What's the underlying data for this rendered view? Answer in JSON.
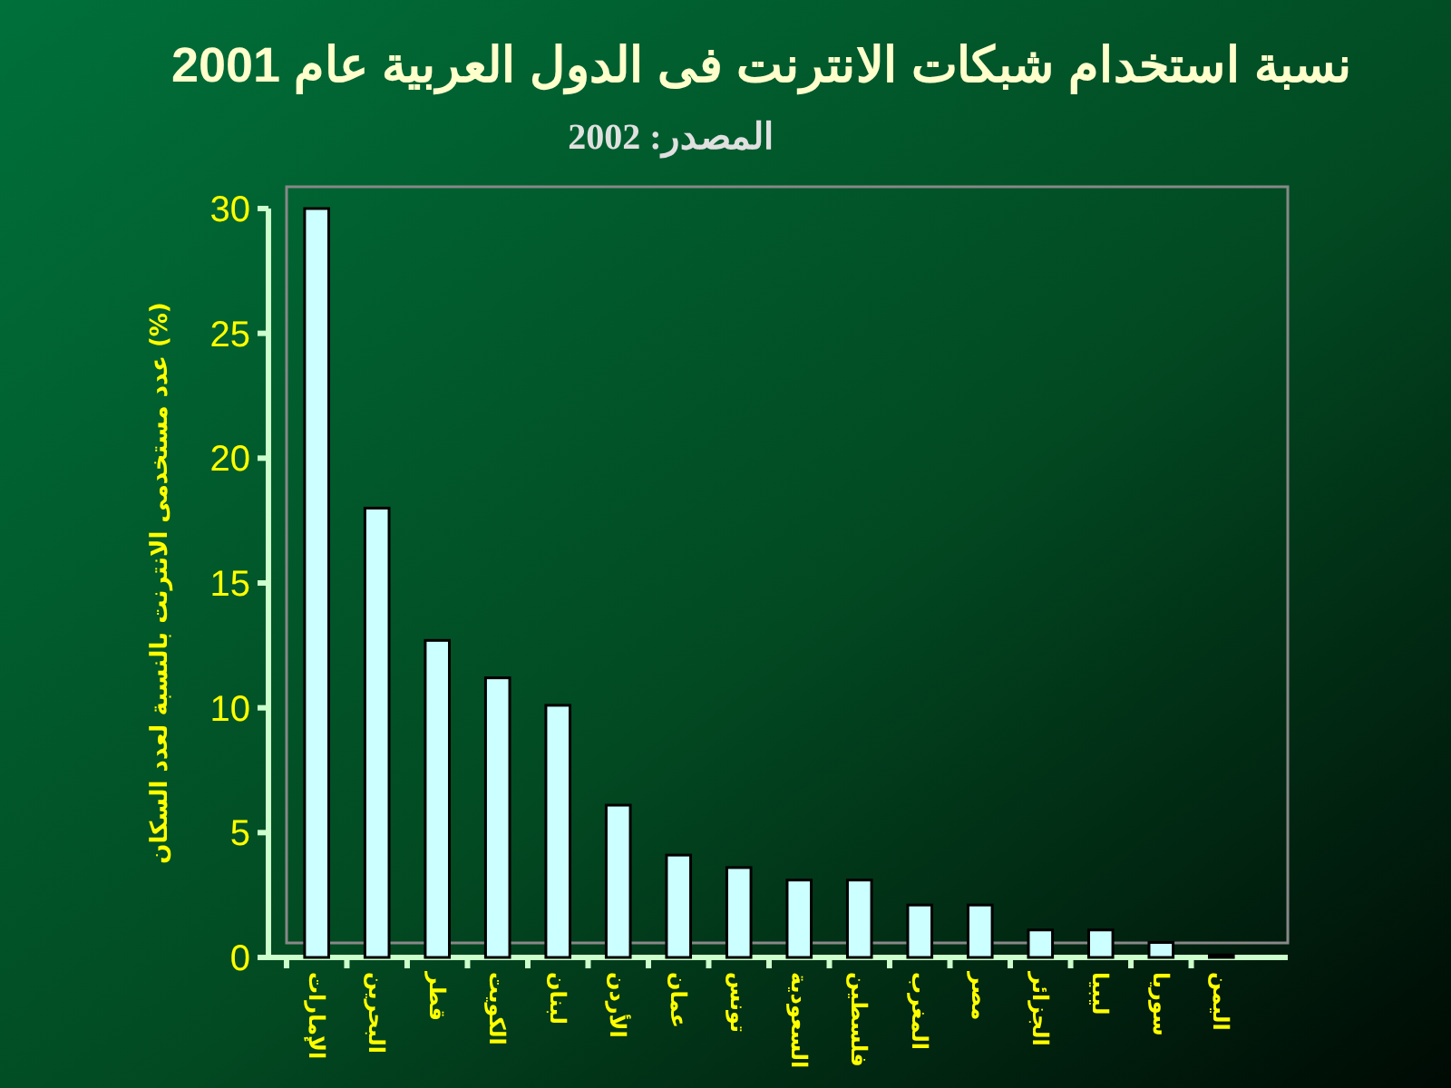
{
  "chart_data": {
    "type": "bar",
    "title": "نسبة استخدام شبكات الانترنت فى الدول العربية عام 2001",
    "subtitle": "المصدر: 2002",
    "ylabel": "عدد مستخدمى الانترنت بالنسبة لعدد السكان (%)",
    "categories": [
      "الإمارات",
      "البحرين",
      "قطر",
      "الكويت",
      "لبنان",
      "الأردن",
      "عمان",
      "تونس",
      "السعودية",
      "فلسطين",
      "المغرب",
      "مصر",
      "الجزائر",
      "ليبيا",
      "سوريا",
      "اليمن"
    ],
    "values": [
      30,
      18,
      12.7,
      11.2,
      10.1,
      6.1,
      4.1,
      3.6,
      3.1,
      3.1,
      2.1,
      2.1,
      1.1,
      1.1,
      0.6,
      0.1
    ],
    "color": "#ccffff",
    "ylim": [
      0,
      30
    ],
    "yticks": [
      0,
      5,
      10,
      15,
      20,
      25,
      30
    ],
    "grid": false
  }
}
